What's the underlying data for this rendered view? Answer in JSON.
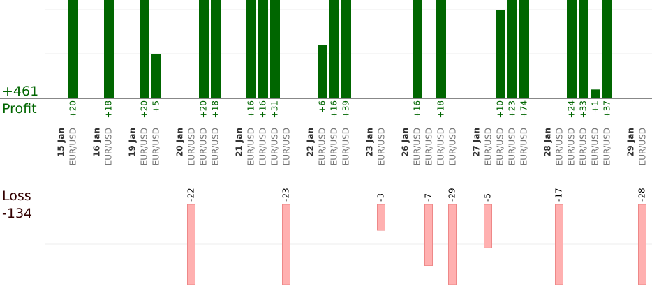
{
  "summary": {
    "profit_total": "+461",
    "profit_label": "Profit",
    "loss_label": "Loss",
    "loss_total": "-134"
  },
  "colors": {
    "profit_bar": "#006600",
    "profit_text": "#006600",
    "loss_bar": "#ffb0b0",
    "loss_bar_border": "#ee8888",
    "axis": "#888888",
    "grid": "#eeeeee",
    "date_text": "#333333",
    "pair_text": "#777777",
    "loss_text": "#000000"
  },
  "chart_data": {
    "type": "bar",
    "profit_ylim": [
      0,
      10
    ],
    "loss_ylim": [
      0,
      9
    ],
    "days": [
      {
        "date": "15 Jan",
        "trades": [
          {
            "pair": "EUR/USD",
            "label": "+20",
            "value": 20
          }
        ]
      },
      {
        "date": "16 Jan",
        "trades": [
          {
            "pair": "EUR/USD",
            "label": "+18",
            "value": 18
          }
        ]
      },
      {
        "date": "19 Jan",
        "trades": [
          {
            "pair": "EUR/USD",
            "label": "+20",
            "value": 20
          },
          {
            "pair": "EUR/USD",
            "label": "+5",
            "value": 5
          }
        ]
      },
      {
        "date": "20 Jan",
        "trades": [
          {
            "pair": "EUR/USD",
            "label": "-22",
            "value": -22
          },
          {
            "pair": "EUR/USD",
            "label": "+20",
            "value": 20
          },
          {
            "pair": "EUR/USD",
            "label": "+18",
            "value": 18
          }
        ]
      },
      {
        "date": "21 Jan",
        "trades": [
          {
            "pair": "EUR/USD",
            "label": "+16",
            "value": 16
          },
          {
            "pair": "EUR/USD",
            "label": "+16",
            "value": 16
          },
          {
            "pair": "EUR/USD",
            "label": "+31",
            "value": 31
          },
          {
            "pair": "EUR/USD",
            "label": "-23",
            "value": -23
          }
        ]
      },
      {
        "date": "22 Jan",
        "trades": [
          {
            "pair": "EUR/USD",
            "label": "+6",
            "value": 6
          },
          {
            "pair": "EUR/USD",
            "label": "+16",
            "value": 16
          },
          {
            "pair": "EUR/USD",
            "label": "+39",
            "value": 39
          }
        ]
      },
      {
        "date": "23 Jan",
        "trades": [
          {
            "pair": "EUR/USD",
            "label": "-3",
            "value": -3
          }
        ]
      },
      {
        "date": "26 Jan",
        "trades": [
          {
            "pair": "EUR/USD",
            "label": "+16",
            "value": 16
          },
          {
            "pair": "EUR/USD",
            "label": "-7",
            "value": -7
          },
          {
            "pair": "EUR/USD",
            "label": "+18",
            "value": 18
          },
          {
            "pair": "EUR/USD",
            "label": "-29",
            "value": -29
          }
        ]
      },
      {
        "date": "27 Jan",
        "trades": [
          {
            "pair": "EUR/USD",
            "label": "-5",
            "value": -5
          },
          {
            "pair": "EUR/USD",
            "label": "+10",
            "value": 10
          },
          {
            "pair": "EUR/USD",
            "label": "+23",
            "value": 23
          },
          {
            "pair": "EUR/USD",
            "label": "+74",
            "value": 74
          }
        ]
      },
      {
        "date": "28 Jan",
        "trades": [
          {
            "pair": "EUR/USD",
            "label": "-17",
            "value": -17
          },
          {
            "pair": "EUR/USD",
            "label": "+24",
            "value": 24
          },
          {
            "pair": "EUR/USD",
            "label": "+33",
            "value": 33
          },
          {
            "pair": "EUR/USD",
            "label": "+1",
            "value": 1
          },
          {
            "pair": "EUR/USD",
            "label": "+37",
            "value": 37
          }
        ]
      },
      {
        "date": "29 Jan",
        "trades": [
          {
            "pair": "EUR/USD",
            "label": "-28",
            "value": -28
          }
        ]
      }
    ]
  }
}
